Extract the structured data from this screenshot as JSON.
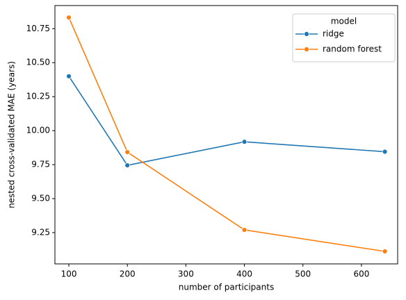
{
  "chart_data": {
    "type": "line",
    "x_label": "number of participants",
    "y_label": "nested cross-validated MAE (years)",
    "x": [
      100,
      200,
      400,
      640
    ],
    "series": [
      {
        "name": "ridge",
        "color": "#1f77b4",
        "values": [
          10.4,
          9.745,
          9.918,
          9.845
        ]
      },
      {
        "name": "random forest",
        "color": "#ff7f0e",
        "values": [
          10.832,
          9.842,
          9.27,
          9.112
        ]
      }
    ],
    "xlim": [
      76.2,
      661.9
    ],
    "xticks": [
      100,
      200,
      300,
      400,
      500,
      600
    ],
    "ylim": [
      9.02,
      10.92
    ],
    "yticks": [
      9.25,
      {
        "value": 9.5,
        "label": "9.50"
      },
      9.75,
      {
        "value": 10,
        "label": "10.00"
      },
      10.25,
      {
        "value": 10.5,
        "label": "10.50"
      },
      10.75
    ],
    "grid": false,
    "legend_title": "model",
    "legend_position": "upper right"
  }
}
